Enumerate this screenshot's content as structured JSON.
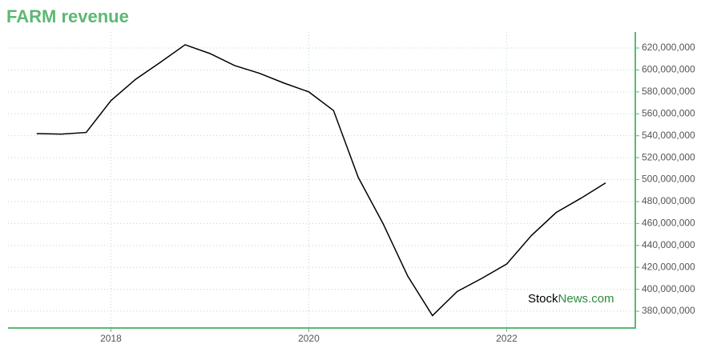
{
  "chart_data": {
    "type": "line",
    "title": "FARM revenue",
    "x": [
      2017.25,
      2017.5,
      2017.75,
      2018,
      2018.25,
      2018.5,
      2018.75,
      2019,
      2019.25,
      2019.5,
      2019.75,
      2020,
      2020.25,
      2020.5,
      2020.75,
      2021,
      2021.25,
      2021.5,
      2021.75,
      2022,
      2022.25,
      2022.5,
      2022.75,
      2023
    ],
    "series": [
      {
        "name": "revenue",
        "color": "#000000",
        "values": [
          542000000,
          541500000,
          543000000,
          572000000,
          591500000,
          607000000,
          623000000,
          615000000,
          604000000,
          597000000,
          588000000,
          580000000,
          563000000,
          502000000,
          460000000,
          412000000,
          376000000,
          398000000,
          410000000,
          423000000,
          449000000,
          470000000,
          483000000,
          497000000
        ]
      }
    ],
    "xlim": [
      2016.96,
      2023.3
    ],
    "xticks": [
      2018,
      2020,
      2022
    ],
    "ylim": [
      364700000,
      634600000
    ],
    "yticks": [
      {
        "value": 380000000,
        "label": "380,000,000"
      },
      {
        "value": 400000000,
        "label": "400,000,000"
      },
      {
        "value": 420000000,
        "label": "420,000,000"
      },
      {
        "value": 440000000,
        "label": "440,000,000"
      },
      {
        "value": 460000000,
        "label": "460,000,000"
      },
      {
        "value": 480000000,
        "label": "480,000,000"
      },
      {
        "value": 500000000,
        "label": "500,000,000"
      },
      {
        "value": 520000000,
        "label": "520,000,000"
      },
      {
        "value": 540000000,
        "label": "540,000,000"
      },
      {
        "value": 560000000,
        "label": "560,000,000"
      },
      {
        "value": 580000000,
        "label": "580,000,000"
      },
      {
        "value": 600000000,
        "label": "600,000,000"
      },
      {
        "value": 620000000,
        "label": "620,000,000"
      }
    ],
    "grid": true,
    "axis_color": "#5cb873",
    "watermark": [
      "Stock",
      "News.com"
    ]
  }
}
